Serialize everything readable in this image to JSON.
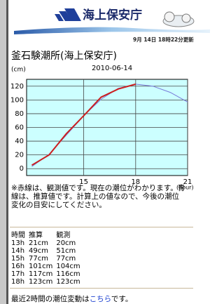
{
  "header": {
    "logo_text": "海上保安庁",
    "updated": "9月 14日 18時22分更新"
  },
  "station_title": "釜石験潮所(海上保安庁)",
  "chart_data": {
    "type": "line",
    "title": "2010-06-14",
    "y_unit_label": "(cm)",
    "x_unit_label": "(hour)",
    "x": [
      12,
      13,
      14,
      15,
      16,
      17,
      18,
      19,
      20,
      21
    ],
    "series": [
      {
        "name": "推算",
        "color": "#7878d8",
        "values": [
          3,
          21,
          49,
          77,
          101,
          117,
          123,
          120,
          111,
          97
        ]
      },
      {
        "name": "観測",
        "color": "#cc1f1f",
        "values": [
          5,
          20,
          51,
          77,
          104,
          116,
          123,
          null,
          null,
          null
        ]
      }
    ],
    "xlim": [
      11.7,
      21
    ],
    "ylim": [
      -10,
      130
    ],
    "xticks": [
      15,
      18,
      21
    ],
    "yticks": [
      0,
      20,
      40,
      60,
      80,
      100,
      120
    ],
    "grid": true
  },
  "note": "※赤線は、観測値です。現在の潮位がわかります。青線は、推算値です。計算上の値なので、今後の潮位変化の目安にしてください。",
  "table": {
    "columns": [
      "時間",
      "推算",
      "観測"
    ],
    "rows": [
      [
        "13h",
        "21cm",
        "20cm"
      ],
      [
        "14h",
        "49cm",
        "51cm"
      ],
      [
        "15h",
        "77cm",
        "77cm"
      ],
      [
        "16h",
        "101cm",
        "104cm"
      ],
      [
        "17h",
        "117cm",
        "116cm"
      ],
      [
        "18h",
        "123cm",
        "123cm"
      ]
    ]
  },
  "footer": {
    "text_before": "最近2時間の潮位変動は",
    "link": "こちら",
    "text_after": "です。"
  }
}
